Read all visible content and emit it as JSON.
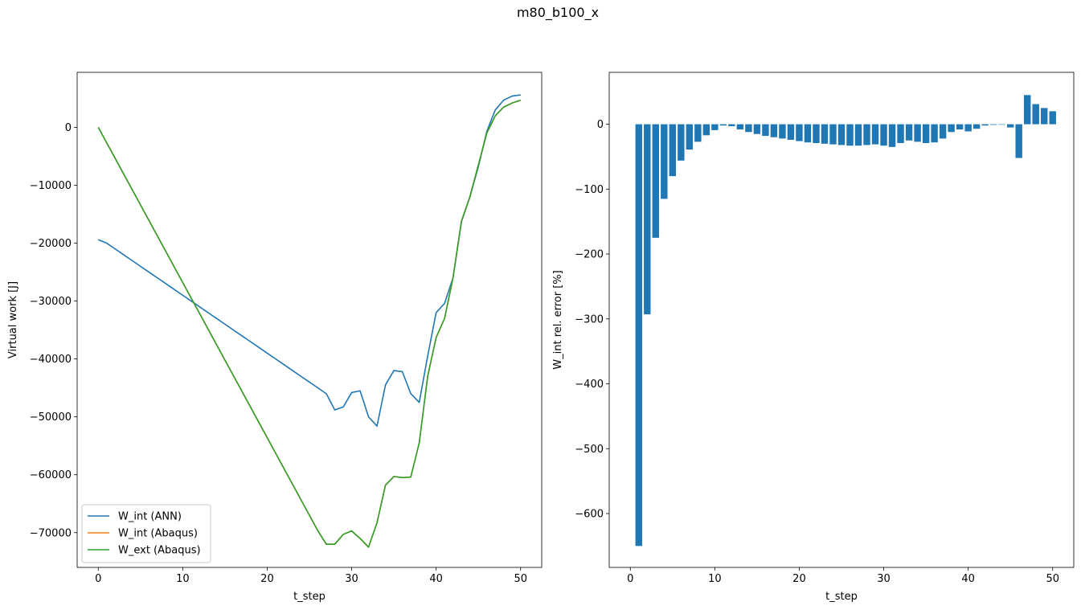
{
  "suptitle": "m80_b100_x",
  "colors": {
    "ann": "#1f77b4",
    "int_abaqus": "#ff7f0e",
    "ext_abaqus": "#2ca02c",
    "bar": "#1f77b4"
  },
  "chart_data": [
    {
      "type": "line",
      "xlabel": "t_step",
      "ylabel": "Virtual work [J]",
      "xlim": [
        -2.5,
        52.5
      ],
      "ylim": [
        -76000,
        9500
      ],
      "xticks": [
        0,
        10,
        20,
        30,
        40,
        50
      ],
      "yticks": [
        0,
        -10000,
        -20000,
        -30000,
        -40000,
        -50000,
        -60000,
        -70000
      ],
      "ytick_labels": [
        "0",
        "−10000",
        "−20000",
        "−30000",
        "−40000",
        "−50000",
        "−60000",
        "−70000"
      ],
      "legend": "lower-left",
      "x": [
        0,
        1,
        2,
        3,
        4,
        5,
        6,
        7,
        8,
        9,
        10,
        11,
        12,
        13,
        14,
        15,
        16,
        17,
        18,
        19,
        20,
        21,
        22,
        23,
        24,
        25,
        26,
        27,
        28,
        29,
        30,
        31,
        32,
        33,
        34,
        35,
        36,
        37,
        38,
        39,
        40,
        41,
        42,
        43,
        44,
        45,
        46,
        47,
        48,
        49,
        50
      ],
      "series": [
        {
          "name": "W_int (ANN)",
          "color": "#1f77b4",
          "values": [
            -19400,
            -20000,
            -21000,
            -22000,
            -23000,
            -24000,
            -25000,
            -26000,
            -27000,
            -28000,
            -29000,
            -30000,
            -31000,
            -32000,
            -33000,
            -34000,
            -35000,
            -36000,
            -37000,
            -38000,
            -39000,
            -40000,
            -41000,
            -42000,
            -43000,
            -44000,
            -45000,
            -46000,
            -48800,
            -48300,
            -45800,
            -45500,
            -50000,
            -51600,
            -44500,
            -42000,
            -42200,
            -46000,
            -47500,
            -39500,
            -32000,
            -30400,
            -26000,
            -16300,
            -12000,
            -6800,
            -700,
            3000,
            4700,
            5400,
            5600
          ]
        },
        {
          "name": "W_int (Abaqus)",
          "color": "#ff7f0e",
          "values": [
            0,
            -2680,
            -5360,
            -8040,
            -10720,
            -13400,
            -16080,
            -18760,
            -21440,
            -24120,
            -26800,
            -29480,
            -32160,
            -34840,
            -37520,
            -40200,
            -42880,
            -45560,
            -48240,
            -50920,
            -53600,
            -56280,
            -58960,
            -61640,
            -64320,
            -67000,
            -69680,
            -72000,
            -72000,
            -70300,
            -69700,
            -71000,
            -72500,
            -68300,
            -61800,
            -60300,
            -60500,
            -60400,
            -54500,
            -43000,
            -36300,
            -33000,
            -26000,
            -16200,
            -12000,
            -6500,
            -1000,
            2000,
            3500,
            4200,
            4700
          ]
        },
        {
          "name": "W_ext (Abaqus)",
          "color": "#2ca02c",
          "values": [
            0,
            -2680,
            -5360,
            -8040,
            -10720,
            -13400,
            -16080,
            -18760,
            -21440,
            -24120,
            -26800,
            -29480,
            -32160,
            -34840,
            -37520,
            -40200,
            -42880,
            -45560,
            -48240,
            -50920,
            -53600,
            -56280,
            -58960,
            -61640,
            -64320,
            -67000,
            -69680,
            -72000,
            -72000,
            -70300,
            -69700,
            -71000,
            -72500,
            -68300,
            -61800,
            -60300,
            -60500,
            -60400,
            -54500,
            -43000,
            -36300,
            -33000,
            -26000,
            -16200,
            -12000,
            -6500,
            -1000,
            2000,
            3500,
            4200,
            4700
          ]
        }
      ]
    },
    {
      "type": "bar",
      "xlabel": "t_step",
      "ylabel": "W_int rel. error [%]",
      "xlim": [
        -2.5,
        52.5
      ],
      "ylim": [
        -683,
        80
      ],
      "xticks": [
        0,
        10,
        20,
        30,
        40,
        50
      ],
      "yticks": [
        0,
        -100,
        -200,
        -300,
        -400,
        -500,
        -600
      ],
      "ytick_labels": [
        "0",
        "−100",
        "−200",
        "−300",
        "−400",
        "−500",
        "−600"
      ],
      "x": [
        1,
        2,
        3,
        4,
        5,
        6,
        7,
        8,
        9,
        10,
        11,
        12,
        13,
        14,
        15,
        16,
        17,
        18,
        19,
        20,
        21,
        22,
        23,
        24,
        25,
        26,
        27,
        28,
        29,
        30,
        31,
        32,
        33,
        34,
        35,
        36,
        37,
        38,
        39,
        40,
        41,
        42,
        43,
        44,
        45,
        46,
        47,
        48,
        49,
        50
      ],
      "values": [
        -650,
        -293,
        -175,
        -115,
        -80,
        -56,
        -39,
        -27,
        -17,
        -9,
        -2,
        -3,
        -8,
        -12,
        -15,
        -18,
        -20,
        -22,
        -24,
        -26,
        -28,
        -29,
        -30,
        -31,
        -32,
        -33,
        -33,
        -32,
        -31,
        -33,
        -35,
        -29,
        -25,
        -27,
        -29,
        -28,
        -22,
        -12,
        -8,
        -11,
        -7,
        -2,
        -1,
        0,
        -5,
        -52,
        45,
        31,
        25,
        20
      ]
    }
  ]
}
